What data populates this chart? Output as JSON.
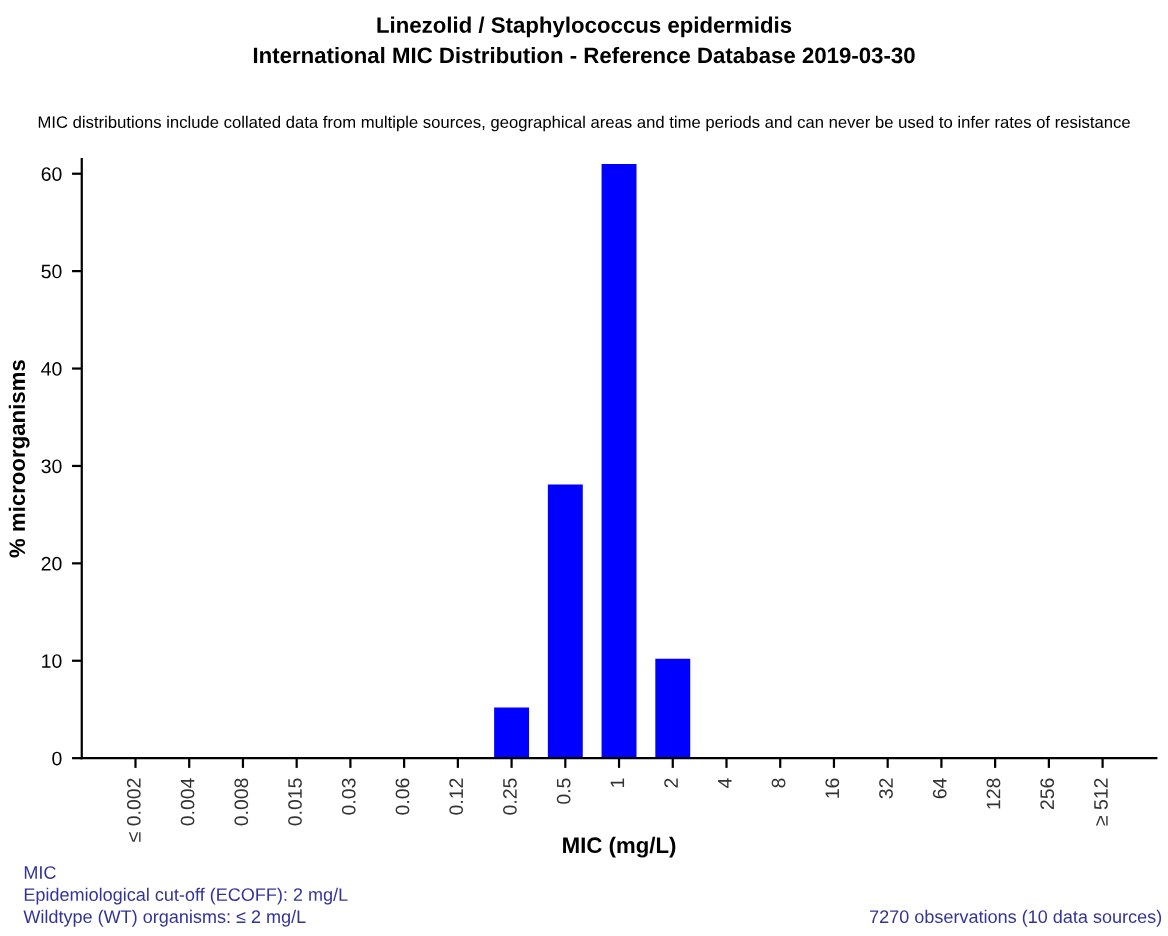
{
  "chart_data": {
    "type": "bar",
    "title": "Linezolid / Staphylococcus epidermidis\nInternational MIC Distribution - Reference Database 2019-03-30",
    "subtitle": "MIC distributions include collated data from multiple sources, geographical areas and time periods and can never be used to infer rates of resistance",
    "xlabel": "MIC (mg/L)",
    "ylabel": "% microorganisms",
    "categories": [
      "≤ 0.002",
      "0.004",
      "0.008",
      "0.015",
      "0.03",
      "0.06",
      "0.12",
      "0.25",
      "0.5",
      "1",
      "2",
      "4",
      "8",
      "16",
      "32",
      "64",
      "128",
      "256",
      "≥ 512"
    ],
    "values": [
      0,
      0,
      0,
      0,
      0,
      0,
      0,
      5.2,
      28.1,
      61,
      10.2,
      0,
      0,
      0,
      0,
      0,
      0,
      0,
      0
    ],
    "color": "#0000ff",
    "ylim": [
      0,
      61.5
    ],
    "yticks": [
      0,
      10,
      20,
      30,
      40,
      50,
      60
    ],
    "grid": false,
    "legend": false,
    "annotations": [
      "MIC\nEpidemiological cut-off (ECOFF): 2 mg/L\nWildtype (WT) organisms: ≤ 2 mg/L",
      "7270 observations (10 data sources)"
    ]
  }
}
